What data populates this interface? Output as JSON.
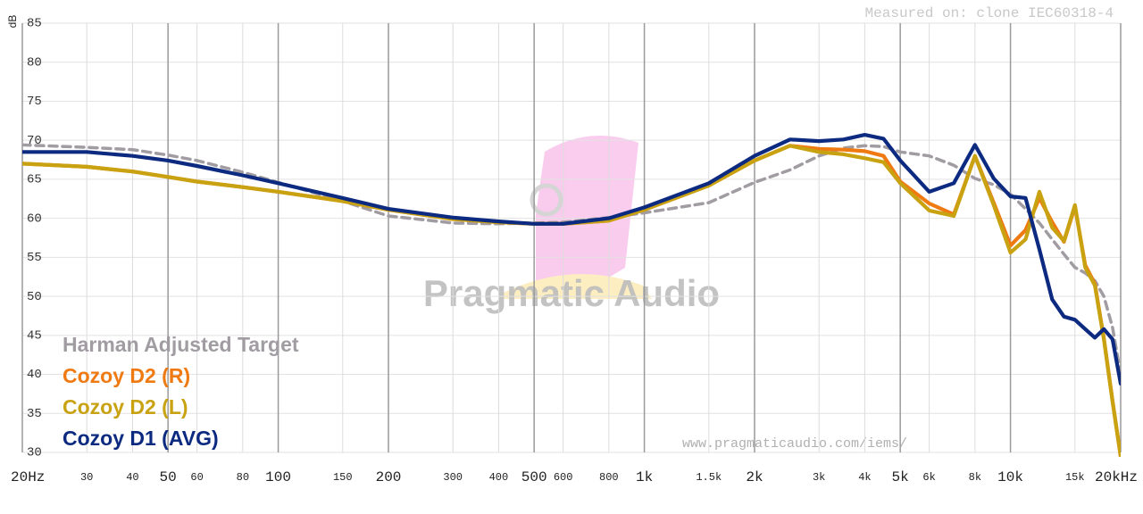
{
  "chart_data": {
    "type": "line",
    "title": "Measured on: clone IEC60318-4",
    "ylabel": "dB",
    "watermark": "Pragmatic Audio",
    "footer": "www.pragmaticaudio.com/iems/",
    "xscale": "log",
    "xlim": [
      20,
      20000
    ],
    "ylim": [
      30,
      85
    ],
    "grid": true,
    "legend": "lower-left",
    "xticks": [
      {
        "value": 20,
        "label": "20Hz"
      },
      30,
      40,
      50,
      60,
      80,
      100,
      150,
      200,
      300,
      400,
      500,
      600,
      800,
      {
        "value": 1000,
        "label": "1k"
      },
      {
        "value": 1500,
        "label": "1.5k"
      },
      {
        "value": 2000,
        "label": "2k"
      },
      {
        "value": 3000,
        "label": "3k"
      },
      {
        "value": 4000,
        "label": "4k"
      },
      {
        "value": 5000,
        "label": "5k"
      },
      {
        "value": 6000,
        "label": "6k"
      },
      {
        "value": 8000,
        "label": "8k"
      },
      {
        "value": 10000,
        "label": "10k"
      },
      {
        "value": 15000,
        "label": "15k"
      },
      {
        "value": 20000,
        "label": "20kHz"
      }
    ],
    "yticks": [
      30,
      35,
      40,
      45,
      50,
      55,
      60,
      65,
      70,
      75,
      80,
      85
    ],
    "x": [
      20,
      30,
      40,
      50,
      60,
      80,
      100,
      150,
      200,
      300,
      400,
      500,
      600,
      800,
      1000,
      1500,
      2000,
      2500,
      3000,
      3500,
      4000,
      4500,
      5000,
      6000,
      7000,
      8000,
      9000,
      10000,
      11000,
      12000,
      13000,
      14000,
      15000,
      16000,
      17000,
      18000,
      19000,
      20000
    ],
    "series": [
      {
        "name": "Harman Adjusted Target",
        "color": "#a09ca2",
        "dashed": true,
        "values": [
          69.4,
          69.1,
          68.8,
          68.1,
          67.4,
          65.9,
          64.6,
          62.2,
          60.3,
          59.4,
          59.3,
          59.4,
          59.5,
          60.1,
          60.7,
          62.0,
          64.6,
          66.2,
          68.0,
          69.0,
          69.3,
          69.2,
          68.5,
          68.0,
          66.8,
          65.1,
          64.3,
          63.1,
          61.2,
          59.4,
          57.3,
          55.4,
          53.7,
          53.0,
          52.0,
          50.0,
          46.0,
          40.0
        ]
      },
      {
        "name": "Cozoy D2 (R)",
        "color": "#f07a12",
        "values": [
          67.0,
          66.6,
          66.0,
          65.3,
          64.7,
          64.0,
          63.4,
          62.2,
          61.1,
          59.9,
          59.5,
          59.3,
          59.3,
          59.7,
          61.1,
          64.2,
          67.4,
          69.3,
          68.9,
          68.8,
          68.6,
          68.0,
          64.7,
          61.9,
          60.5,
          68.0,
          62.0,
          56.5,
          58.5,
          62.6,
          59.5,
          57.0,
          61.5,
          54.0,
          51.6,
          44.6,
          36.6,
          29.5
        ]
      },
      {
        "name": "Cozoy D2 (L)",
        "color": "#c9a212",
        "values": [
          67.0,
          66.6,
          66.0,
          65.3,
          64.7,
          64.0,
          63.4,
          62.2,
          61.1,
          59.9,
          59.5,
          59.3,
          59.3,
          59.7,
          61.1,
          64.2,
          67.4,
          69.3,
          68.5,
          68.2,
          67.7,
          67.2,
          64.5,
          61.0,
          60.3,
          68.0,
          61.7,
          55.6,
          57.3,
          63.4,
          58.8,
          57.1,
          61.7,
          53.7,
          51.4,
          44.5,
          36.5,
          29.5
        ]
      },
      {
        "name": "Cozoy D1 (AVG)",
        "color": "#0c2a80",
        "values": [
          68.5,
          68.5,
          68.0,
          67.4,
          66.7,
          65.5,
          64.5,
          62.6,
          61.2,
          60.1,
          59.6,
          59.3,
          59.3,
          60.0,
          61.4,
          64.5,
          68.0,
          70.1,
          69.9,
          70.1,
          70.7,
          70.2,
          67.4,
          63.4,
          64.5,
          69.4,
          65.1,
          62.8,
          62.6,
          56.0,
          49.6,
          47.4,
          47.0,
          45.8,
          44.7,
          45.8,
          44.5,
          38.8
        ]
      }
    ]
  }
}
